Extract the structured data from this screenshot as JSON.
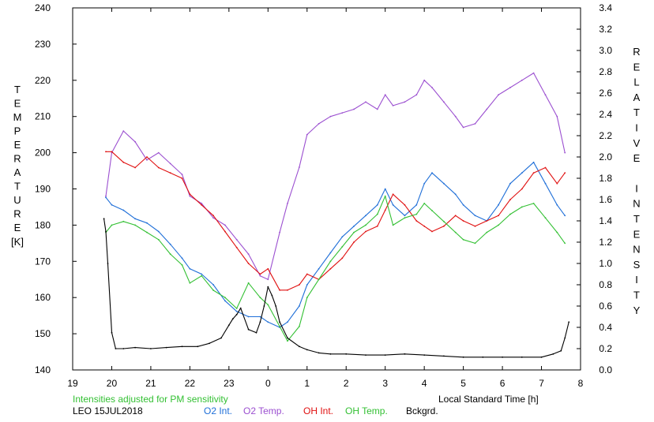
{
  "chart_data": {
    "type": "line",
    "note": "Intensities adjusted for PM sensitivity",
    "station_label": "LEO 15JUL2018",
    "xlabel": "Local Standard Time [h]",
    "ylabel_left": "TEMPERATURE",
    "ylabel_left_unit": "[K]",
    "ylabel_right": "RELATIVE INTENSITY",
    "x_ticks": [
      "19",
      "20",
      "21",
      "22",
      "23",
      "0",
      "1",
      "2",
      "3",
      "4",
      "5",
      "6",
      "7",
      "8"
    ],
    "xlim": [
      19,
      32
    ],
    "ylim_left": [
      140,
      240
    ],
    "y_ticks_left": [
      140,
      150,
      160,
      170,
      180,
      190,
      200,
      210,
      220,
      230,
      240
    ],
    "ylim_right": [
      0,
      3.4
    ],
    "y_ticks_right": [
      "0.0",
      "0.2",
      "0.4",
      "0.6",
      "0.8",
      "1.0",
      "1.2",
      "1.4",
      "1.6",
      "1.8",
      "2.0",
      "2.2",
      "2.4",
      "2.6",
      "2.8",
      "3.0",
      "3.2",
      "3.4"
    ],
    "colors": {
      "o2_int": "#1f6fd8",
      "o2_temp": "#9b4fd0",
      "oh_int": "#e01010",
      "oh_temp": "#33c033",
      "bckgrd": "#000000",
      "note": "#33c033"
    },
    "series": [
      {
        "name": "O2 Int.",
        "axis": "right",
        "color": "#1f6fd8",
        "x": [
          19.85,
          20.0,
          20.3,
          20.6,
          20.9,
          21.2,
          21.5,
          21.8,
          22.0,
          22.3,
          22.6,
          22.9,
          23.2,
          23.5,
          23.8,
          24.0,
          24.3,
          24.5,
          24.8,
          25.0,
          25.3,
          25.6,
          25.9,
          26.2,
          26.5,
          26.8,
          27.0,
          27.2,
          27.5,
          27.8,
          28.0,
          28.2,
          28.5,
          28.8,
          29.0,
          29.3,
          29.6,
          29.9,
          30.2,
          30.5,
          30.8,
          31.1,
          31.4,
          31.6
        ],
        "y": [
          1.62,
          1.55,
          1.5,
          1.42,
          1.38,
          1.3,
          1.18,
          1.05,
          0.95,
          0.9,
          0.8,
          0.65,
          0.55,
          0.5,
          0.5,
          0.45,
          0.4,
          0.45,
          0.6,
          0.8,
          0.95,
          1.1,
          1.25,
          1.35,
          1.45,
          1.55,
          1.7,
          1.55,
          1.45,
          1.55,
          1.75,
          1.85,
          1.75,
          1.65,
          1.55,
          1.45,
          1.4,
          1.55,
          1.75,
          1.85,
          1.95,
          1.75,
          1.55,
          1.45
        ]
      },
      {
        "name": "O2 Temp.",
        "axis": "left",
        "color": "#9b4fd0",
        "x": [
          19.85,
          20.0,
          20.3,
          20.6,
          20.9,
          21.2,
          21.5,
          21.8,
          22.0,
          22.3,
          22.6,
          22.9,
          23.2,
          23.5,
          23.8,
          24.0,
          24.3,
          24.5,
          24.8,
          25.0,
          25.3,
          25.6,
          25.9,
          26.2,
          26.5,
          26.8,
          27.0,
          27.2,
          27.5,
          27.8,
          28.0,
          28.2,
          28.5,
          28.8,
          29.0,
          29.3,
          29.6,
          29.9,
          30.2,
          30.5,
          30.8,
          31.1,
          31.4,
          31.6
        ],
        "y": [
          188,
          200,
          206,
          203,
          198,
          200,
          197,
          194,
          188,
          186,
          182,
          180,
          176,
          172,
          166,
          165,
          178,
          186,
          196,
          205,
          208,
          210,
          211,
          212,
          214,
          212,
          216,
          213,
          214,
          216,
          220,
          218,
          214,
          210,
          207,
          208,
          212,
          216,
          218,
          220,
          222,
          216,
          210,
          200
        ]
      },
      {
        "name": "OH Int.",
        "axis": "right",
        "color": "#e01010",
        "x": [
          19.85,
          20.0,
          20.3,
          20.6,
          20.9,
          21.2,
          21.5,
          21.8,
          22.0,
          22.3,
          22.6,
          22.9,
          23.2,
          23.5,
          23.8,
          24.0,
          24.3,
          24.5,
          24.8,
          25.0,
          25.3,
          25.6,
          25.9,
          26.2,
          26.5,
          26.8,
          27.0,
          27.2,
          27.5,
          27.8,
          28.0,
          28.2,
          28.5,
          28.8,
          29.0,
          29.3,
          29.6,
          29.9,
          30.2,
          30.5,
          30.8,
          31.1,
          31.4,
          31.6
        ],
        "y": [
          2.05,
          2.05,
          1.95,
          1.9,
          2.0,
          1.9,
          1.85,
          1.8,
          1.65,
          1.55,
          1.45,
          1.3,
          1.15,
          1.0,
          0.9,
          0.95,
          0.75,
          0.75,
          0.8,
          0.9,
          0.85,
          0.95,
          1.05,
          1.2,
          1.3,
          1.35,
          1.5,
          1.65,
          1.55,
          1.4,
          1.35,
          1.3,
          1.35,
          1.45,
          1.4,
          1.35,
          1.4,
          1.45,
          1.6,
          1.7,
          1.85,
          1.9,
          1.75,
          1.85
        ]
      },
      {
        "name": "OH Temp.",
        "axis": "left",
        "color": "#33c033",
        "x": [
          19.85,
          20.0,
          20.3,
          20.6,
          20.9,
          21.2,
          21.5,
          21.8,
          22.0,
          22.3,
          22.6,
          22.9,
          23.2,
          23.5,
          23.8,
          24.0,
          24.3,
          24.5,
          24.8,
          25.0,
          25.3,
          25.6,
          25.9,
          26.2,
          26.5,
          26.8,
          27.0,
          27.2,
          27.5,
          27.8,
          28.0,
          28.2,
          28.5,
          28.8,
          29.0,
          29.3,
          29.6,
          29.9,
          30.2,
          30.5,
          30.8,
          31.1,
          31.4,
          31.6
        ],
        "y": [
          178,
          180,
          181,
          180,
          178,
          176,
          172,
          169,
          164,
          166,
          162,
          160,
          157,
          164,
          160,
          158,
          152,
          148,
          152,
          160,
          165,
          170,
          174,
          178,
          180,
          183,
          188,
          180,
          182,
          183,
          186,
          184,
          181,
          178,
          176,
          175,
          178,
          180,
          183,
          185,
          186,
          182,
          178,
          175
        ]
      },
      {
        "name": "Bckgrd.",
        "axis": "right",
        "color": "#000000",
        "x": [
          19.8,
          19.85,
          19.9,
          20.0,
          20.1,
          20.3,
          20.6,
          21.0,
          21.4,
          21.8,
          22.2,
          22.5,
          22.8,
          23.0,
          23.1,
          23.2,
          23.3,
          23.5,
          23.7,
          23.8,
          23.9,
          24.0,
          24.1,
          24.2,
          24.3,
          24.5,
          24.8,
          25.0,
          25.3,
          25.6,
          26.0,
          26.5,
          27.0,
          27.5,
          28.0,
          28.5,
          29.0,
          29.5,
          30.0,
          30.5,
          31.0,
          31.3,
          31.5,
          31.6,
          31.7
        ],
        "y": [
          1.42,
          1.3,
          1.0,
          0.35,
          0.2,
          0.2,
          0.21,
          0.2,
          0.21,
          0.22,
          0.22,
          0.25,
          0.3,
          0.42,
          0.48,
          0.52,
          0.58,
          0.38,
          0.35,
          0.45,
          0.6,
          0.78,
          0.7,
          0.6,
          0.45,
          0.3,
          0.22,
          0.19,
          0.16,
          0.15,
          0.15,
          0.14,
          0.14,
          0.15,
          0.14,
          0.13,
          0.12,
          0.12,
          0.12,
          0.12,
          0.12,
          0.15,
          0.18,
          0.3,
          0.45
        ]
      }
    ]
  }
}
